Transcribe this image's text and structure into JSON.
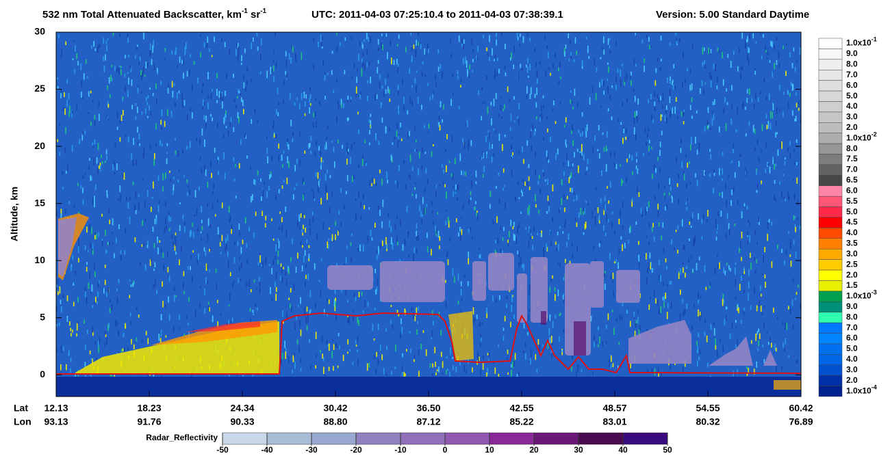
{
  "chart_data": {
    "type": "curtain",
    "title_segments": [
      {
        "text": "532 nm Total Attenuated Backscatter, km"
      },
      {
        "text": "-1",
        "sup": true
      },
      {
        "text": " sr"
      },
      {
        "text": "-1",
        "sup": true
      }
    ],
    "utc": "UTC:  2011-04-03 07:25:10.4  to  2011-04-03 07:38:39.1",
    "version": "Version: 5.00  Standard  Daytime",
    "ylabel": "Altitude, km",
    "ylim": [
      -1.9,
      30
    ],
    "yticks": [
      0,
      5,
      10,
      15,
      20,
      25,
      30
    ],
    "x_rows": [
      {
        "name": "Lat",
        "values": [
          12.13,
          18.23,
          24.34,
          30.42,
          {
            "value": 36.5,
            "label": "36.50"
          },
          42.55,
          48.57,
          54.55,
          60.42
        ]
      },
      {
        "name": "Lon",
        "values": [
          93.13,
          91.76,
          90.33,
          {
            "value": 88.8,
            "label": "88.80"
          },
          87.12,
          85.22,
          83.01,
          80.32,
          76.89
        ]
      }
    ],
    "colorbar": [
      {
        "label": "1.0x10",
        "exp": "-1",
        "color": "#ffffff"
      },
      {
        "label": "9.0",
        "color": "#f7f7f7"
      },
      {
        "label": "8.0",
        "color": "#efefef"
      },
      {
        "label": "7.0",
        "color": "#e7e7e7"
      },
      {
        "label": "6.0",
        "color": "#dfdfdf"
      },
      {
        "label": "5.0",
        "color": "#d7d7d7"
      },
      {
        "label": "4.0",
        "color": "#cfcfcf"
      },
      {
        "label": "3.0",
        "color": "#c6c6c6"
      },
      {
        "label": "2.0",
        "color": "#bdbdbd"
      },
      {
        "label": "1.0x10",
        "exp": "-2",
        "color": "#adadad"
      },
      {
        "label": "8.0",
        "color": "#969696"
      },
      {
        "label": "7.5",
        "color": "#7d7d7d"
      },
      {
        "label": "7.0",
        "color": "#636363"
      },
      {
        "label": "6.5",
        "color": "#474747"
      },
      {
        "label": "6.0",
        "color": "#ff85a8"
      },
      {
        "label": "5.5",
        "color": "#ff5577"
      },
      {
        "label": "5.0",
        "color": "#ff2a4a"
      },
      {
        "label": "4.5",
        "color": "#ff0000"
      },
      {
        "label": "4.0",
        "color": "#ff4a00"
      },
      {
        "label": "3.5",
        "color": "#ff8000"
      },
      {
        "label": "3.0",
        "color": "#ffaa00"
      },
      {
        "label": "2.5",
        "color": "#ffcc00"
      },
      {
        "label": "2.0",
        "color": "#ffff00"
      },
      {
        "label": "1.5",
        "color": "#e8f000"
      },
      {
        "label": "1.0x10",
        "exp": "-3",
        "color": "#00a050"
      },
      {
        "label": "9.0",
        "color": "#00907a"
      },
      {
        "label": "8.0",
        "color": "#30ffb0"
      },
      {
        "label": "7.0",
        "color": "#0078ff"
      },
      {
        "label": "6.0",
        "color": "#0084ff"
      },
      {
        "label": "5.0",
        "color": "#0070f0"
      },
      {
        "label": "4.0",
        "color": "#0066e8"
      },
      {
        "label": "3.0",
        "color": "#0050d0"
      },
      {
        "label": "2.0",
        "color": "#0030a8"
      },
      {
        "label": "1.0x10",
        "exp": "-4",
        "color": "#00208f"
      }
    ],
    "radar": {
      "label": "Radar_Reflectivity",
      "xlim": [
        -50,
        50
      ],
      "xticks": [
        -50,
        -40,
        -30,
        -20,
        -10,
        0,
        10,
        20,
        30,
        40,
        50
      ],
      "colors": [
        "#c8d8e8",
        "#a8bcd8",
        "#98a8d0",
        "#9080c0",
        "#9070b8",
        "#9058b0",
        "#8a2898",
        "#6a1878",
        "#4a0a50",
        "#3a0a80"
      ]
    }
  }
}
